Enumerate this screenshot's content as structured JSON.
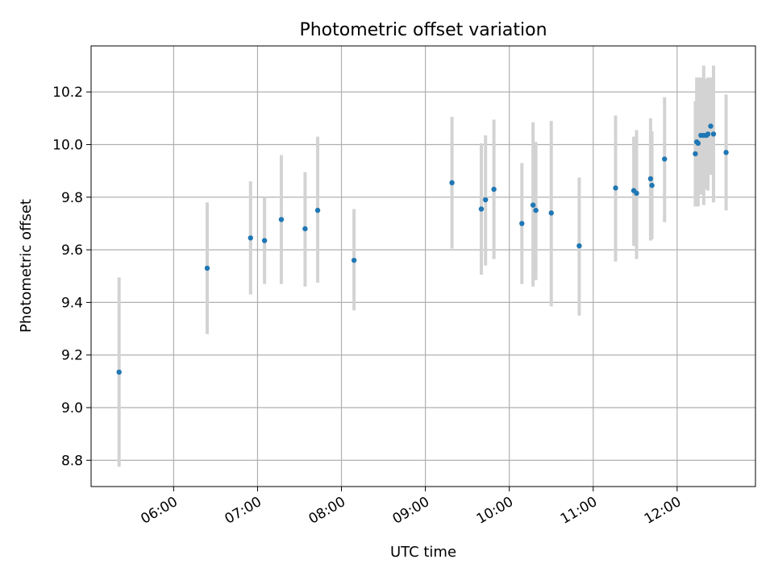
{
  "chart_data": {
    "type": "scatter",
    "title": "Photometric offset variation",
    "xlabel": "UTC time",
    "ylabel": "Photometric offset",
    "x_tick_labels": [
      "06:00",
      "07:00",
      "08:00",
      "09:00",
      "10:00",
      "11:00",
      "12:00"
    ],
    "y_tick_labels": [
      "8.8",
      "9.0",
      "9.2",
      "9.4",
      "9.6",
      "9.8",
      "10.0",
      "10.2"
    ],
    "xlim": [
      "05:01",
      "12:56"
    ],
    "ylim": [
      8.7,
      10.375
    ],
    "grid": true,
    "marker_color": "#1f77b4",
    "errorbar_color": "#d3d3d3",
    "series": [
      {
        "points": [
          {
            "x": "05:21",
            "y": 9.135,
            "ylow": 8.775,
            "yhigh": 9.495
          },
          {
            "x": "06:24",
            "y": 9.53,
            "ylow": 9.28,
            "yhigh": 9.78
          },
          {
            "x": "06:55",
            "y": 9.645,
            "ylow": 9.43,
            "yhigh": 9.86
          },
          {
            "x": "07:05",
            "y": 9.635,
            "ylow": 9.47,
            "yhigh": 9.8
          },
          {
            "x": "07:17",
            "y": 9.715,
            "ylow": 9.47,
            "yhigh": 9.96
          },
          {
            "x": "07:34",
            "y": 9.68,
            "ylow": 9.46,
            "yhigh": 9.895
          },
          {
            "x": "07:43",
            "y": 9.75,
            "ylow": 9.475,
            "yhigh": 10.03
          },
          {
            "x": "08:09",
            "y": 9.56,
            "ylow": 9.37,
            "yhigh": 9.755
          },
          {
            "x": "09:19",
            "y": 9.855,
            "ylow": 9.605,
            "yhigh": 10.105
          },
          {
            "x": "09:40",
            "y": 9.755,
            "ylow": 9.505,
            "yhigh": 10.005
          },
          {
            "x": "09:43",
            "y": 9.79,
            "ylow": 9.54,
            "yhigh": 10.035
          },
          {
            "x": "09:49",
            "y": 9.83,
            "ylow": 9.565,
            "yhigh": 10.095
          },
          {
            "x": "10:09",
            "y": 9.7,
            "ylow": 9.47,
            "yhigh": 9.93
          },
          {
            "x": "10:17",
            "y": 9.77,
            "ylow": 9.46,
            "yhigh": 10.085
          },
          {
            "x": "10:19",
            "y": 9.75,
            "ylow": 9.485,
            "yhigh": 10.01
          },
          {
            "x": "10:30",
            "y": 9.74,
            "ylow": 9.385,
            "yhigh": 10.09
          },
          {
            "x": "10:50",
            "y": 9.615,
            "ylow": 9.35,
            "yhigh": 9.875
          },
          {
            "x": "11:16",
            "y": 9.835,
            "ylow": 9.555,
            "yhigh": 10.11
          },
          {
            "x": "11:29",
            "y": 9.825,
            "ylow": 9.615,
            "yhigh": 10.03
          },
          {
            "x": "11:31",
            "y": 9.815,
            "ylow": 9.565,
            "yhigh": 10.055
          },
          {
            "x": "11:41",
            "y": 9.87,
            "ylow": 9.635,
            "yhigh": 10.1
          },
          {
            "x": "11:42",
            "y": 9.845,
            "ylow": 9.64,
            "yhigh": 10.05
          },
          {
            "x": "11:51",
            "y": 9.945,
            "ylow": 9.705,
            "yhigh": 10.18
          },
          {
            "x": "12:13",
            "y": 9.965,
            "ylow": 9.765,
            "yhigh": 10.165
          },
          {
            "x": "12:14",
            "y": 10.01,
            "ylow": 9.765,
            "yhigh": 10.255
          },
          {
            "x": "12:15",
            "y": 10.005,
            "ylow": 9.765,
            "yhigh": 10.255
          },
          {
            "x": "12:17",
            "y": 10.035,
            "ylow": 9.81,
            "yhigh": 10.255
          },
          {
            "x": "12:19",
            "y": 10.035,
            "ylow": 9.77,
            "yhigh": 10.3
          },
          {
            "x": "12:21",
            "y": 10.035,
            "ylow": 9.83,
            "yhigh": 10.25
          },
          {
            "x": "12:22",
            "y": 10.04,
            "ylow": 9.825,
            "yhigh": 10.255
          },
          {
            "x": "12:24",
            "y": 10.07,
            "ylow": 9.885,
            "yhigh": 10.255
          },
          {
            "x": "12:26",
            "y": 10.04,
            "ylow": 9.78,
            "yhigh": 10.3
          },
          {
            "x": "12:35",
            "y": 9.97,
            "ylow": 9.75,
            "yhigh": 10.19
          }
        ]
      }
    ]
  }
}
